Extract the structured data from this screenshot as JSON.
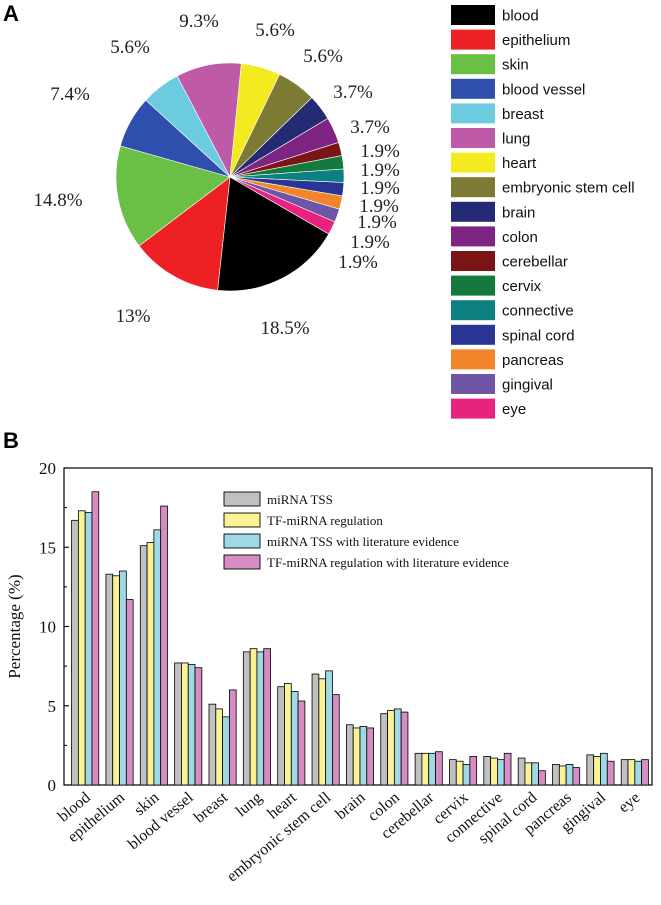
{
  "panels": {
    "a": "A",
    "b": "B"
  },
  "chart_data": [
    {
      "type": "pie",
      "panel": "A",
      "title": "",
      "slices": [
        {
          "label": "blood",
          "value": 18.5,
          "pct_label": "18.5%",
          "color": "#000000"
        },
        {
          "label": "epithelium",
          "value": 13.0,
          "pct_label": "13%",
          "color": "#ed2024"
        },
        {
          "label": "skin",
          "value": 14.8,
          "pct_label": "14.8%",
          "color": "#6abf45"
        },
        {
          "label": "blood vessel",
          "value": 7.4,
          "pct_label": "7.4%",
          "color": "#2f4fae"
        },
        {
          "label": "breast",
          "value": 5.6,
          "pct_label": "5.6%",
          "color": "#6dcbe0"
        },
        {
          "label": "lung",
          "value": 9.3,
          "pct_label": "9.3%",
          "color": "#be5aa8"
        },
        {
          "label": "heart",
          "value": 5.6,
          "pct_label": "5.6%",
          "color": "#f3ea1f"
        },
        {
          "label": "embryonic stem cell",
          "value": 5.6,
          "pct_label": "5.6%",
          "color": "#7c7a33"
        },
        {
          "label": "brain",
          "value": 3.7,
          "pct_label": "3.7%",
          "color": "#252a74"
        },
        {
          "label": "colon",
          "value": 3.7,
          "pct_label": "3.7%",
          "color": "#7e2584"
        },
        {
          "label": "cerebellar",
          "value": 1.9,
          "pct_label": "1.9%",
          "color": "#7c1616"
        },
        {
          "label": "cervix",
          "value": 1.9,
          "pct_label": "1.9%",
          "color": "#13793c"
        },
        {
          "label": "connective",
          "value": 1.9,
          "pct_label": "1.9%",
          "color": "#0d8181"
        },
        {
          "label": "spinal cord",
          "value": 1.9,
          "pct_label": "1.9%",
          "color": "#283593"
        },
        {
          "label": "pancreas",
          "value": 1.9,
          "pct_label": "1.9%",
          "color": "#f2852a"
        },
        {
          "label": "gingival",
          "value": 1.9,
          "pct_label": "1.9%",
          "color": "#6e55a6"
        },
        {
          "label": "eye",
          "value": 1.9,
          "pct_label": "1.9%",
          "color": "#e8237f"
        }
      ],
      "legend_position": "right"
    },
    {
      "type": "bar",
      "panel": "B",
      "title": "",
      "xlabel": "",
      "ylabel": "Percentage (%)",
      "ylim": [
        0,
        20
      ],
      "yticks": [
        0,
        5,
        10,
        15,
        20
      ],
      "categories": [
        "blood",
        "epithelium",
        "skin",
        "blood vessel",
        "breast",
        "lung",
        "heart",
        "embryonic stem cell",
        "brain",
        "colon",
        "cerebellar",
        "cervix",
        "connective",
        "spinal cord",
        "pancreas",
        "gingival",
        "eye"
      ],
      "series": [
        {
          "name": "miRNA TSS",
          "color": "#c0c0c0",
          "values": [
            16.7,
            13.3,
            15.1,
            7.7,
            5.1,
            8.4,
            6.2,
            7.0,
            3.8,
            4.5,
            2.0,
            1.6,
            1.8,
            1.7,
            1.3,
            1.9,
            1.6
          ]
        },
        {
          "name": "TF-miRNA regulation",
          "color": "#f9f396",
          "values": [
            17.3,
            13.2,
            15.3,
            7.7,
            4.8,
            8.6,
            6.4,
            6.7,
            3.6,
            4.7,
            2.0,
            1.5,
            1.7,
            1.4,
            1.2,
            1.8,
            1.6
          ]
        },
        {
          "name": "miRNA TSS with literature evidence",
          "color": "#9fd9e6",
          "values": [
            17.2,
            13.5,
            16.1,
            7.6,
            4.3,
            8.4,
            5.9,
            7.2,
            3.7,
            4.8,
            2.0,
            1.3,
            1.6,
            1.4,
            1.3,
            2.0,
            1.5
          ]
        },
        {
          "name": "TF-miRNA regulation with literature evidence",
          "color": "#d68dc4",
          "values": [
            18.5,
            11.7,
            17.6,
            7.4,
            6.0,
            8.6,
            5.3,
            5.7,
            3.6,
            4.6,
            2.1,
            1.8,
            2.0,
            0.9,
            1.1,
            1.5,
            1.6
          ]
        }
      ],
      "legend_position": "top-right"
    }
  ]
}
